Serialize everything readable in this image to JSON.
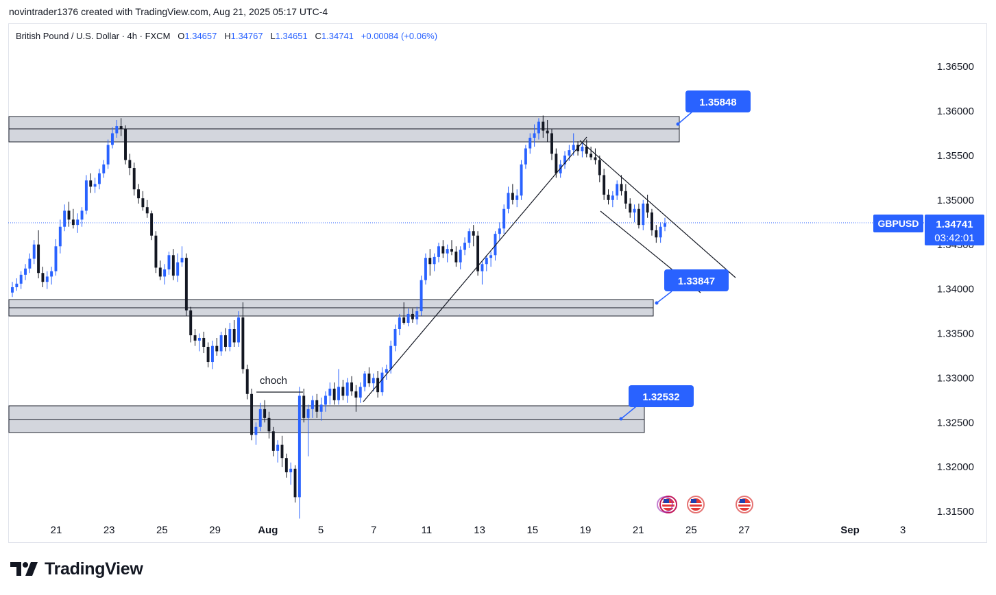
{
  "header": {
    "attribution": "novintrader1376 created with TradingView.com, Aug 21, 2025 05:17 UTC-4"
  },
  "legend": {
    "title": "British Pound / U.S. Dollar · 4h · FXCM",
    "o_label": "O",
    "o_value": "1.34657",
    "h_label": "H",
    "h_value": "1.34767",
    "l_label": "L",
    "l_value": "1.34651",
    "c_label": "C",
    "c_value": "1.34741",
    "change": "+0.00084 (+0.06%)"
  },
  "colors": {
    "up": "#2962ff",
    "down": "#131722",
    "zone_fill": "#d1d4dc",
    "label_bg": "#2962ff",
    "price_axis_text": "#131722"
  },
  "chart_data": {
    "type": "candlestick",
    "symbol": "GBPUSD",
    "timeframe": "4h",
    "last_price": "1.34741",
    "countdown": "03:42:01",
    "ylim": [
      1.3135,
      1.3685
    ],
    "y_ticks": [
      {
        "value": 1.365,
        "label": "1.36500"
      },
      {
        "value": 1.36,
        "label": "1.36000"
      },
      {
        "value": 1.355,
        "label": "1.35500"
      },
      {
        "value": 1.35,
        "label": "1.35000"
      },
      {
        "value": 1.345,
        "label": "1.34500"
      },
      {
        "value": 1.34,
        "label": "1.34000"
      },
      {
        "value": 1.335,
        "label": "1.33500"
      },
      {
        "value": 1.33,
        "label": "1.33000"
      },
      {
        "value": 1.325,
        "label": "1.32500"
      },
      {
        "value": 1.32,
        "label": "1.32000"
      },
      {
        "value": 1.315,
        "label": "1.31500"
      }
    ],
    "x_ticks": [
      {
        "day": 0,
        "label": "21"
      },
      {
        "day": 2,
        "label": "23"
      },
      {
        "day": 4,
        "label": "25"
      },
      {
        "day": 6,
        "label": "29"
      },
      {
        "day": 8,
        "label": "Aug"
      },
      {
        "day": 10,
        "label": "5"
      },
      {
        "day": 12,
        "label": "7"
      },
      {
        "day": 14,
        "label": "11"
      },
      {
        "day": 16,
        "label": "13"
      },
      {
        "day": 18,
        "label": "15"
      },
      {
        "day": 20,
        "label": "19"
      },
      {
        "day": 22,
        "label": "21"
      },
      {
        "day": 24,
        "label": "25"
      },
      {
        "day": 26,
        "label": "27"
      },
      {
        "day": 30,
        "label": "Sep"
      },
      {
        "day": 32,
        "label": "3"
      }
    ],
    "bars_per_day": 6,
    "candles": [
      [
        1.3396,
        1.3408,
        1.3391,
        1.3402
      ],
      [
        1.3402,
        1.3412,
        1.3398,
        1.3406
      ],
      [
        1.3406,
        1.342,
        1.34,
        1.3416
      ],
      [
        1.3416,
        1.3428,
        1.341,
        1.3423
      ],
      [
        1.3423,
        1.344,
        1.3418,
        1.3434
      ],
      [
        1.3434,
        1.3455,
        1.3428,
        1.345
      ],
      [
        1.345,
        1.3466,
        1.3412,
        1.3418
      ],
      [
        1.3418,
        1.3425,
        1.3402,
        1.3408
      ],
      [
        1.3408,
        1.342,
        1.34,
        1.3414
      ],
      [
        1.3414,
        1.3425,
        1.3405,
        1.342
      ],
      [
        1.342,
        1.3456,
        1.3415,
        1.3448
      ],
      [
        1.3448,
        1.3478,
        1.344,
        1.347
      ],
      [
        1.347,
        1.3495,
        1.3465,
        1.3488
      ],
      [
        1.3488,
        1.3498,
        1.347,
        1.3478
      ],
      [
        1.3478,
        1.349,
        1.3468,
        1.3472
      ],
      [
        1.3472,
        1.3485,
        1.3463,
        1.3478
      ],
      [
        1.3478,
        1.3492,
        1.347,
        1.3488
      ],
      [
        1.3488,
        1.3528,
        1.3484,
        1.3522
      ],
      [
        1.3522,
        1.353,
        1.3508,
        1.3515
      ],
      [
        1.3515,
        1.3525,
        1.3508,
        1.3518
      ],
      [
        1.3518,
        1.3535,
        1.3512,
        1.353
      ],
      [
        1.353,
        1.3545,
        1.3525,
        1.354
      ],
      [
        1.354,
        1.3568,
        1.3535,
        1.3562
      ],
      [
        1.3562,
        1.3582,
        1.3558,
        1.3575
      ],
      [
        1.3575,
        1.359,
        1.357,
        1.3583
      ],
      [
        1.3583,
        1.3592,
        1.3572,
        1.358
      ],
      [
        1.358,
        1.3584,
        1.354,
        1.3545
      ],
      [
        1.3545,
        1.3552,
        1.3528,
        1.3536
      ],
      [
        1.3536,
        1.3542,
        1.3505,
        1.3512
      ],
      [
        1.3512,
        1.3518,
        1.3496,
        1.3502
      ],
      [
        1.3502,
        1.351,
        1.3488,
        1.3492
      ],
      [
        1.3492,
        1.35,
        1.348,
        1.3485
      ],
      [
        1.3485,
        1.3488,
        1.3455,
        1.346
      ],
      [
        1.346,
        1.3465,
        1.3418,
        1.3424
      ],
      [
        1.3424,
        1.3432,
        1.341,
        1.3414
      ],
      [
        1.3414,
        1.3428,
        1.3405,
        1.3422
      ],
      [
        1.3422,
        1.3442,
        1.3416,
        1.3438
      ],
      [
        1.3438,
        1.3445,
        1.341,
        1.3415
      ],
      [
        1.3415,
        1.344,
        1.3408,
        1.343
      ],
      [
        1.343,
        1.3448,
        1.3425,
        1.3435
      ],
      [
        1.3435,
        1.344,
        1.337,
        1.3376
      ],
      [
        1.3376,
        1.338,
        1.334,
        1.3348
      ],
      [
        1.3348,
        1.3355,
        1.3336,
        1.3342
      ],
      [
        1.3342,
        1.335,
        1.333,
        1.3345
      ],
      [
        1.3345,
        1.3352,
        1.3328,
        1.3335
      ],
      [
        1.3335,
        1.334,
        1.3312,
        1.3318
      ],
      [
        1.3318,
        1.3342,
        1.331,
        1.3336
      ],
      [
        1.3336,
        1.3345,
        1.3325,
        1.333
      ],
      [
        1.333,
        1.3352,
        1.3325,
        1.3348
      ],
      [
        1.3348,
        1.3356,
        1.333,
        1.3335
      ],
      [
        1.3335,
        1.3362,
        1.333,
        1.3355
      ],
      [
        1.3355,
        1.3365,
        1.3335,
        1.334
      ],
      [
        1.334,
        1.3375,
        1.3335,
        1.3368
      ],
      [
        1.3368,
        1.3385,
        1.3305,
        1.331
      ],
      [
        1.331,
        1.3315,
        1.3276,
        1.3282
      ],
      [
        1.3282,
        1.3288,
        1.323,
        1.3236
      ],
      [
        1.3236,
        1.325,
        1.3225,
        1.3245
      ],
      [
        1.3245,
        1.3272,
        1.324,
        1.3265
      ],
      [
        1.3265,
        1.3275,
        1.325,
        1.3255
      ],
      [
        1.3255,
        1.3262,
        1.3232,
        1.324
      ],
      [
        1.324,
        1.3245,
        1.3212,
        1.3218
      ],
      [
        1.3218,
        1.323,
        1.3205,
        1.3225
      ],
      [
        1.3225,
        1.3235,
        1.32,
        1.321
      ],
      [
        1.321,
        1.3215,
        1.3188,
        1.3194
      ],
      [
        1.3194,
        1.3205,
        1.318,
        1.3198
      ],
      [
        1.3198,
        1.3202,
        1.316,
        1.3166
      ],
      [
        1.3166,
        1.329,
        1.3142,
        1.328
      ],
      [
        1.328,
        1.3288,
        1.325,
        1.3255
      ],
      [
        1.3255,
        1.327,
        1.3212,
        1.3265
      ],
      [
        1.3265,
        1.328,
        1.3255,
        1.3275
      ],
      [
        1.3275,
        1.3282,
        1.3255,
        1.3262
      ],
      [
        1.3262,
        1.3278,
        1.3252,
        1.327
      ],
      [
        1.327,
        1.3285,
        1.3262,
        1.328
      ],
      [
        1.328,
        1.3295,
        1.327,
        1.3288
      ],
      [
        1.3288,
        1.3295,
        1.327,
        1.3275
      ],
      [
        1.3275,
        1.331,
        1.327,
        1.329
      ],
      [
        1.329,
        1.3298,
        1.3275,
        1.328
      ],
      [
        1.328,
        1.33,
        1.3272,
        1.3295
      ],
      [
        1.3295,
        1.3302,
        1.328,
        1.3285
      ],
      [
        1.3285,
        1.3292,
        1.3262,
        1.3278
      ],
      [
        1.3278,
        1.3295,
        1.3272,
        1.329
      ],
      [
        1.329,
        1.3308,
        1.3285,
        1.3305
      ],
      [
        1.3305,
        1.3312,
        1.329,
        1.3294
      ],
      [
        1.3294,
        1.3305,
        1.3285,
        1.33
      ],
      [
        1.33,
        1.3308,
        1.3278,
        1.3284
      ],
      [
        1.3284,
        1.3312,
        1.328,
        1.3306
      ],
      [
        1.3306,
        1.3315,
        1.3298,
        1.331
      ],
      [
        1.331,
        1.3342,
        1.3305,
        1.3336
      ],
      [
        1.3336,
        1.336,
        1.333,
        1.3355
      ],
      [
        1.3355,
        1.3372,
        1.3348,
        1.3368
      ],
      [
        1.3368,
        1.3385,
        1.336,
        1.3362
      ],
      [
        1.3362,
        1.3378,
        1.3358,
        1.3372
      ],
      [
        1.3372,
        1.3378,
        1.3362,
        1.3366
      ],
      [
        1.3366,
        1.338,
        1.336,
        1.3375
      ],
      [
        1.3375,
        1.3415,
        1.337,
        1.341
      ],
      [
        1.341,
        1.344,
        1.3405,
        1.3435
      ],
      [
        1.3435,
        1.3445,
        1.3415,
        1.3428
      ],
      [
        1.3428,
        1.344,
        1.342,
        1.3436
      ],
      [
        1.3436,
        1.3452,
        1.343,
        1.3448
      ],
      [
        1.3448,
        1.3455,
        1.3435,
        1.344
      ],
      [
        1.344,
        1.345,
        1.343,
        1.3445
      ],
      [
        1.3445,
        1.3455,
        1.3438,
        1.3442
      ],
      [
        1.3442,
        1.3448,
        1.3425,
        1.343
      ],
      [
        1.343,
        1.3448,
        1.3422,
        1.3444
      ],
      [
        1.3444,
        1.3458,
        1.3438,
        1.3452
      ],
      [
        1.3452,
        1.3468,
        1.3446,
        1.3465
      ],
      [
        1.3465,
        1.3472,
        1.3448,
        1.346
      ],
      [
        1.346,
        1.3465,
        1.3415,
        1.342
      ],
      [
        1.342,
        1.3432,
        1.3405,
        1.3428
      ],
      [
        1.3428,
        1.3438,
        1.342,
        1.3435
      ],
      [
        1.3435,
        1.3442,
        1.3425,
        1.3438
      ],
      [
        1.3438,
        1.3465,
        1.3432,
        1.3462
      ],
      [
        1.3462,
        1.3475,
        1.3455,
        1.3468
      ],
      [
        1.3468,
        1.3495,
        1.3462,
        1.349
      ],
      [
        1.349,
        1.3515,
        1.3485,
        1.3508
      ],
      [
        1.3508,
        1.3518,
        1.3495,
        1.35
      ],
      [
        1.35,
        1.3512,
        1.3492,
        1.3505
      ],
      [
        1.3505,
        1.3545,
        1.35,
        1.354
      ],
      [
        1.354,
        1.3562,
        1.3535,
        1.3558
      ],
      [
        1.3558,
        1.3575,
        1.3552,
        1.357
      ],
      [
        1.357,
        1.3585,
        1.356,
        1.3575
      ],
      [
        1.3575,
        1.3592,
        1.3568,
        1.3588
      ],
      [
        1.3588,
        1.3595,
        1.357,
        1.3578
      ],
      [
        1.3578,
        1.359,
        1.3565,
        1.3575
      ],
      [
        1.3575,
        1.358,
        1.3545,
        1.3552
      ],
      [
        1.3552,
        1.3558,
        1.3525,
        1.353
      ],
      [
        1.353,
        1.3545,
        1.3525,
        1.354
      ],
      [
        1.354,
        1.3555,
        1.3535,
        1.355
      ],
      [
        1.355,
        1.3562,
        1.3544,
        1.3556
      ],
      [
        1.3556,
        1.3575,
        1.355,
        1.3562
      ],
      [
        1.3562,
        1.3566,
        1.355,
        1.3555
      ],
      [
        1.3555,
        1.3565,
        1.3548,
        1.356
      ],
      [
        1.356,
        1.3568,
        1.3548,
        1.3552
      ],
      [
        1.3552,
        1.356,
        1.3545,
        1.3548
      ],
      [
        1.3548,
        1.3558,
        1.354,
        1.3545
      ],
      [
        1.3545,
        1.355,
        1.352,
        1.3528
      ],
      [
        1.3528,
        1.3535,
        1.35,
        1.3506
      ],
      [
        1.3506,
        1.3512,
        1.3495,
        1.35
      ],
      [
        1.35,
        1.351,
        1.3492,
        1.3505
      ],
      [
        1.3505,
        1.3522,
        1.35,
        1.3518
      ],
      [
        1.3518,
        1.3528,
        1.3505,
        1.351
      ],
      [
        1.351,
        1.3518,
        1.349,
        1.3496
      ],
      [
        1.3496,
        1.3502,
        1.348,
        1.3486
      ],
      [
        1.3486,
        1.3495,
        1.3475,
        1.349
      ],
      [
        1.349,
        1.3496,
        1.3468,
        1.3472
      ],
      [
        1.3472,
        1.35,
        1.3466,
        1.3496
      ],
      [
        1.3496,
        1.3506,
        1.348,
        1.3486
      ],
      [
        1.3486,
        1.349,
        1.346,
        1.3466
      ],
      [
        1.3466,
        1.3472,
        1.3452,
        1.3458
      ],
      [
        1.3458,
        1.3475,
        1.3452,
        1.347
      ],
      [
        1.347,
        1.348,
        1.3465,
        1.3474
      ]
    ]
  },
  "zones": [
    {
      "name": "upper-supply-zone",
      "top": 1.3595,
      "bottom": 1.3565,
      "mid": 1.3581
    },
    {
      "name": "middle-zone",
      "top": 1.3385,
      "bottom": 1.3366,
      "mid": 1.3376
    },
    {
      "name": "lower-demand-zone",
      "top": 1.3269,
      "bottom": 1.3238,
      "mid": 1.3253
    }
  ],
  "price_labels": {
    "upper": "1.35848",
    "middle": "1.33847",
    "lower": "1.32532",
    "symbol_tag": "GBPUSD",
    "last": "1.34741",
    "countdown": "03:42:01",
    "hidden_tick": "1.34500"
  },
  "annotations": {
    "choch": "choch"
  },
  "footer": {
    "brand": "TradingView"
  }
}
